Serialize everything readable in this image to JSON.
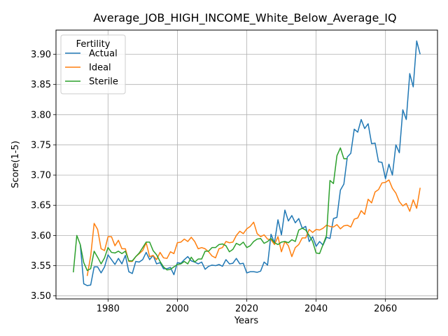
{
  "chart_data": {
    "type": "line",
    "title": "Average_JOB_HIGH_INCOME_White_Below_Average_IQ",
    "xlabel": "Years",
    "ylabel": "Score(1-5)",
    "xlim": [
      1965,
      2075
    ],
    "ylim": [
      3.495,
      3.94
    ],
    "x_ticks": [
      1980,
      2000,
      2020,
      2040,
      2060
    ],
    "y_ticks": [
      3.5,
      3.55,
      3.6,
      3.65,
      3.7,
      3.75,
      3.8,
      3.85,
      3.9
    ],
    "y_tick_labels": [
      "3.50",
      "3.55",
      "3.60",
      "3.65",
      "3.70",
      "3.75",
      "3.80",
      "3.85",
      "3.90"
    ],
    "grid": true,
    "legend": {
      "title": "Fertility",
      "placement": "top-left"
    },
    "series": [
      {
        "name": "Actual",
        "color": "#1f77b4",
        "x": [
          1972,
          1973,
          1974,
          1975,
          1976,
          1977,
          1978,
          1979,
          1980,
          1981,
          1982,
          1983,
          1984,
          1985,
          1986,
          1987,
          1988,
          1989,
          1990,
          1991,
          1992,
          1993,
          1994,
          1995,
          1996,
          1997,
          1998,
          1999,
          2000,
          2001,
          2002,
          2003,
          2004,
          2005,
          2006,
          2007,
          2008,
          2009,
          2010,
          2011,
          2012,
          2013,
          2014,
          2015,
          2016,
          2017,
          2018,
          2019,
          2020,
          2021,
          2022,
          2023,
          2024,
          2025,
          2026,
          2027,
          2028,
          2029,
          2030,
          2031,
          2032,
          2033,
          2034,
          2035,
          2036,
          2037,
          2038,
          2039,
          2040,
          2041,
          2042,
          2043,
          2044,
          2045,
          2046,
          2047,
          2048,
          2049,
          2050,
          2051,
          2052,
          2053,
          2054,
          2055,
          2056,
          2057,
          2058,
          2059,
          2060,
          2061,
          2062,
          2063,
          2064,
          2065,
          2066,
          2067,
          2068,
          2069,
          2070
        ],
        "values": [
          3.585,
          3.52,
          3.517,
          3.518,
          3.548,
          3.548,
          3.538,
          3.548,
          3.568,
          3.56,
          3.552,
          3.562,
          3.553,
          3.567,
          3.54,
          3.537,
          3.557,
          3.556,
          3.56,
          3.572,
          3.56,
          3.567,
          3.553,
          3.555,
          3.545,
          3.545,
          3.547,
          3.535,
          3.555,
          3.554,
          3.56,
          3.565,
          3.558,
          3.556,
          3.553,
          3.556,
          3.544,
          3.549,
          3.551,
          3.55,
          3.552,
          3.549,
          3.56,
          3.553,
          3.554,
          3.562,
          3.553,
          3.554,
          3.538,
          3.54,
          3.54,
          3.539,
          3.541,
          3.556,
          3.551,
          3.602,
          3.588,
          3.626,
          3.601,
          3.642,
          3.624,
          3.633,
          3.621,
          3.628,
          3.612,
          3.615,
          3.59,
          3.598,
          3.582,
          3.59,
          3.584,
          3.597,
          3.595,
          3.628,
          3.63,
          3.675,
          3.685,
          3.73,
          3.736,
          3.776,
          3.771,
          3.792,
          3.777,
          3.785,
          3.752,
          3.753,
          3.722,
          3.721,
          3.694,
          3.718,
          3.7,
          3.75,
          3.737,
          3.808,
          3.792,
          3.868,
          3.846,
          3.922,
          3.9
        ]
      },
      {
        "name": "Ideal",
        "color": "#ff7f0e",
        "x": [
          1974,
          1975,
          1976,
          1977,
          1978,
          1979,
          1980,
          1981,
          1982,
          1983,
          1984,
          1985,
          1986,
          1987,
          1988,
          1989,
          1990,
          1991,
          1992,
          1993,
          1994,
          1995,
          1996,
          1997,
          1998,
          1999,
          2000,
          2001,
          2002,
          2003,
          2004,
          2005,
          2006,
          2007,
          2008,
          2009,
          2010,
          2011,
          2012,
          2013,
          2014,
          2015,
          2016,
          2017,
          2018,
          2019,
          2020,
          2021,
          2022,
          2023,
          2024,
          2025,
          2026,
          2027,
          2028,
          2029,
          2030,
          2031,
          2032,
          2033,
          2034,
          2035,
          2036,
          2037,
          2038,
          2039,
          2040,
          2041,
          2042,
          2043,
          2044,
          2045,
          2046,
          2047,
          2048,
          2049,
          2050,
          2051,
          2052,
          2053,
          2054,
          2055,
          2056,
          2057,
          2058,
          2059,
          2060,
          2061,
          2062,
          2063,
          2064,
          2065,
          2066,
          2067,
          2068,
          2069,
          2070
        ],
        "values": [
          3.533,
          3.566,
          3.62,
          3.61,
          3.578,
          3.575,
          3.598,
          3.598,
          3.583,
          3.592,
          3.578,
          3.578,
          3.557,
          3.557,
          3.565,
          3.57,
          3.575,
          3.588,
          3.565,
          3.567,
          3.56,
          3.572,
          3.563,
          3.562,
          3.573,
          3.57,
          3.588,
          3.589,
          3.594,
          3.59,
          3.597,
          3.59,
          3.578,
          3.58,
          3.578,
          3.573,
          3.566,
          3.563,
          3.578,
          3.58,
          3.59,
          3.588,
          3.589,
          3.6,
          3.607,
          3.603,
          3.611,
          3.615,
          3.622,
          3.603,
          3.598,
          3.601,
          3.594,
          3.593,
          3.585,
          3.598,
          3.573,
          3.59,
          3.583,
          3.565,
          3.58,
          3.585,
          3.596,
          3.596,
          3.61,
          3.605,
          3.61,
          3.609,
          3.612,
          3.617,
          3.615,
          3.614,
          3.618,
          3.611,
          3.616,
          3.617,
          3.614,
          3.627,
          3.629,
          3.641,
          3.635,
          3.66,
          3.654,
          3.672,
          3.676,
          3.687,
          3.688,
          3.692,
          3.678,
          3.67,
          3.656,
          3.649,
          3.653,
          3.64,
          3.659,
          3.645,
          3.679
        ]
      },
      {
        "name": "Sterile",
        "color": "#2ca02c",
        "x": [
          1970,
          1971,
          1972,
          1973,
          1974,
          1975,
          1976,
          1977,
          1978,
          1979,
          1980,
          1981,
          1982,
          1983,
          1984,
          1985,
          1986,
          1987,
          1988,
          1989,
          1990,
          1991,
          1992,
          1993,
          1994,
          1995,
          1996,
          1997,
          1998,
          1999,
          2000,
          2001,
          2002,
          2003,
          2004,
          2005,
          2006,
          2007,
          2008,
          2009,
          2010,
          2011,
          2012,
          2013,
          2014,
          2015,
          2016,
          2017,
          2018,
          2019,
          2020,
          2021,
          2022,
          2023,
          2024,
          2025,
          2026,
          2027,
          2028,
          2029,
          2030,
          2031,
          2032,
          2033,
          2034,
          2035,
          2036,
          2037,
          2038,
          2039,
          2040,
          2041,
          2042,
          2043,
          2044,
          2045,
          2046,
          2047,
          2048,
          2049
        ],
        "values": [
          3.539,
          3.6,
          3.585,
          3.555,
          3.542,
          3.545,
          3.574,
          3.564,
          3.553,
          3.563,
          3.58,
          3.572,
          3.571,
          3.574,
          3.57,
          3.574,
          3.558,
          3.558,
          3.565,
          3.571,
          3.58,
          3.589,
          3.589,
          3.575,
          3.568,
          3.557,
          3.548,
          3.543,
          3.544,
          3.548,
          3.552,
          3.553,
          3.557,
          3.553,
          3.564,
          3.556,
          3.561,
          3.561,
          3.574,
          3.574,
          3.58,
          3.58,
          3.585,
          3.586,
          3.583,
          3.573,
          3.577,
          3.587,
          3.584,
          3.589,
          3.58,
          3.583,
          3.59,
          3.594,
          3.595,
          3.587,
          3.59,
          3.595,
          3.588,
          3.585,
          3.589,
          3.59,
          3.588,
          3.593,
          3.59,
          3.609,
          3.612,
          3.609,
          3.6,
          3.59,
          3.571,
          3.57,
          3.585,
          3.6,
          3.691,
          3.686,
          3.732,
          3.745,
          3.727,
          3.727
        ]
      }
    ]
  }
}
